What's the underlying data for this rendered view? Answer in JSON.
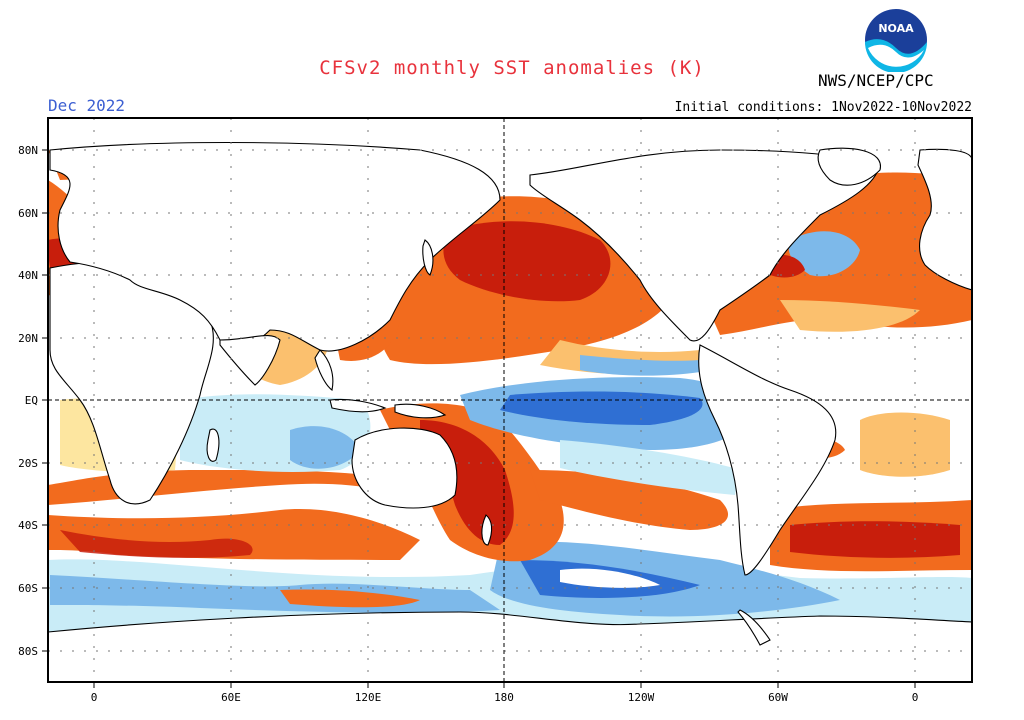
{
  "title": "CFSv2 monthly SST anomalies (K)",
  "period": "Dec 2022",
  "agency": "NWS/NCEP/CPC",
  "initial_conditions": "Initial conditions: 1Nov2022-10Nov2022",
  "colors": {
    "title": "#e8323c",
    "period": "#3c5fd2",
    "strong_warm": "#c81e0c",
    "warm": "#f26b1e",
    "mild_warm": "#fbc06e",
    "weak_warm": "#fde6a0",
    "weak_cool": "#c9ecf7",
    "cool": "#7db9ea",
    "strong_cool": "#2f6fd3",
    "land": "#ffffff"
  },
  "logo": {
    "icon": "noaa-logo",
    "text": "NOAA"
  },
  "axes": {
    "lat_labels": [
      "80N",
      "60N",
      "40N",
      "20N",
      "EQ",
      "20S",
      "40S",
      "60S",
      "80S"
    ],
    "lon_labels": [
      "0",
      "60E",
      "120E",
      "180",
      "120W",
      "60W",
      "0"
    ]
  }
}
